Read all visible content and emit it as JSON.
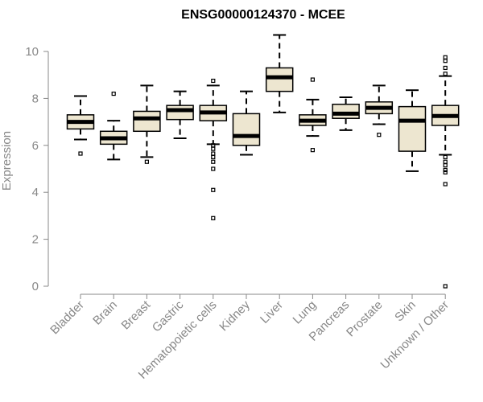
{
  "chart_data": {
    "type": "box",
    "title": "ENSG00000124370 - MCEE",
    "ylabel": "Expression",
    "ylim": [
      0,
      10
    ],
    "yticks": [
      0,
      2,
      4,
      6,
      8,
      10
    ],
    "grid": false,
    "box_color": "#ede6d0",
    "categories": [
      "Bladder",
      "Brain",
      "Breast",
      "Gastric",
      "Hematopoietic cells",
      "Kidney",
      "Liver",
      "Lung",
      "Pancreas",
      "Prostate",
      "Skin",
      "Unknown / Other"
    ],
    "boxes": [
      {
        "whisker_low": 6.25,
        "q1": 6.7,
        "median": 7.0,
        "q3": 7.3,
        "whisker_high": 8.1,
        "outliers": [
          5.65
        ]
      },
      {
        "whisker_low": 5.4,
        "q1": 6.05,
        "median": 6.3,
        "q3": 6.6,
        "whisker_high": 7.05,
        "outliers": [
          8.2
        ]
      },
      {
        "whisker_low": 5.5,
        "q1": 6.6,
        "median": 7.15,
        "q3": 7.45,
        "whisker_high": 8.55,
        "outliers": [
          5.3
        ]
      },
      {
        "whisker_low": 6.3,
        "q1": 7.1,
        "median": 7.5,
        "q3": 7.7,
        "whisker_high": 8.3,
        "outliers": []
      },
      {
        "whisker_low": 6.05,
        "q1": 7.05,
        "median": 7.4,
        "q3": 7.7,
        "whisker_high": 8.55,
        "outliers": [
          8.75,
          6.0,
          5.85,
          5.65,
          5.5,
          5.3,
          5.0,
          4.1,
          2.9
        ]
      },
      {
        "whisker_low": 5.6,
        "q1": 6.0,
        "median": 6.4,
        "q3": 7.35,
        "whisker_high": 8.3,
        "outliers": []
      },
      {
        "whisker_low": 7.4,
        "q1": 8.3,
        "median": 8.9,
        "q3": 9.3,
        "whisker_high": 10.7,
        "outliers": []
      },
      {
        "whisker_low": 6.4,
        "q1": 6.85,
        "median": 7.05,
        "q3": 7.3,
        "whisker_high": 7.95,
        "outliers": [
          8.8,
          5.8
        ]
      },
      {
        "whisker_low": 6.65,
        "q1": 7.15,
        "median": 7.35,
        "q3": 7.75,
        "whisker_high": 8.05,
        "outliers": []
      },
      {
        "whisker_low": 6.9,
        "q1": 7.35,
        "median": 7.6,
        "q3": 7.85,
        "whisker_high": 8.55,
        "outliers": [
          6.45
        ]
      },
      {
        "whisker_low": 4.9,
        "q1": 5.75,
        "median": 7.05,
        "q3": 7.65,
        "whisker_high": 8.35,
        "outliers": []
      },
      {
        "whisker_low": 5.6,
        "q1": 6.85,
        "median": 7.25,
        "q3": 7.7,
        "whisker_high": 8.95,
        "outliers": [
          9.75,
          9.6,
          9.3,
          9.05,
          5.5,
          5.3,
          5.15,
          4.95,
          4.85,
          4.35,
          0.0
        ]
      }
    ]
  }
}
